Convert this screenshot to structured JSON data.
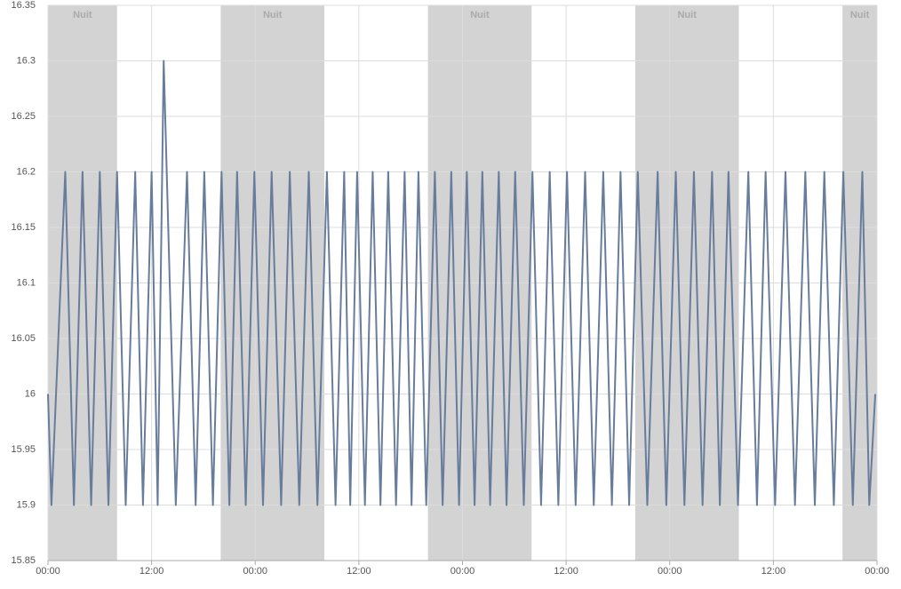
{
  "chart_data": {
    "type": "line",
    "color": "#687d9b",
    "band_color": "#d3d3d3",
    "grid": true,
    "bands": [
      {
        "from": 0,
        "to": 8,
        "label": "Nuit"
      },
      {
        "from": 20,
        "to": 32,
        "label": "Nuit"
      },
      {
        "from": 44,
        "to": 56,
        "label": "Nuit"
      },
      {
        "from": 68,
        "to": 80,
        "label": "Nuit"
      },
      {
        "from": 92,
        "to": 96,
        "label": "Nuit"
      }
    ],
    "xlim": [
      0,
      96
    ],
    "xticks": [
      {
        "value": 0,
        "label": "00:00"
      },
      {
        "value": 12,
        "label": "12:00"
      },
      {
        "value": 24,
        "label": "00:00"
      },
      {
        "value": 36,
        "label": "12:00"
      },
      {
        "value": 48,
        "label": "00:00"
      },
      {
        "value": 60,
        "label": "12:00"
      },
      {
        "value": 72,
        "label": "00:00"
      },
      {
        "value": 84,
        "label": "12:00"
      },
      {
        "value": 96,
        "label": "00:00"
      }
    ],
    "ylim": [
      15.85,
      16.35
    ],
    "yticks": [
      15.85,
      15.9,
      15.95,
      16,
      16.05,
      16.1,
      16.15,
      16.2,
      16.25,
      16.3,
      16.35
    ],
    "x": [
      0,
      0.4,
      2.0,
      3.0,
      4.0,
      5.0,
      6.0,
      7.0,
      8.0,
      9.0,
      10.1,
      11.0,
      12.0,
      12.7,
      13.4,
      14.8,
      16.1,
      17.1,
      18.1,
      19.1,
      20.1,
      21.0,
      21.9,
      22.9,
      23.9,
      24.9,
      25.9,
      27.0,
      28.0,
      29.1,
      30.2,
      31.2,
      32.3,
      33.3,
      34.3,
      35.0,
      35.8,
      36.7,
      37.6,
      38.5,
      39.4,
      40.3,
      41.3,
      42.1,
      42.9,
      43.8,
      44.8,
      45.7,
      46.7,
      47.6,
      48.5,
      49.4,
      50.3,
      51.2,
      52.2,
      53.1,
      54.1,
      55.1,
      56.1,
      57.1,
      58.1,
      59.1,
      60.1,
      61.1,
      62.2,
      63.2,
      64.3,
      65.3,
      66.3,
      67.3,
      68.3,
      69.4,
      70.6,
      71.6,
      72.7,
      73.7,
      74.8,
      75.8,
      76.9,
      77.8,
      78.8,
      79.9,
      81.1,
      82.1,
      83.1,
      84.2,
      85.4,
      86.5,
      87.7,
      88.8,
      89.9,
      91.0,
      92.1,
      93.2,
      94.3,
      95.1,
      95.8
    ],
    "values": [
      16,
      15.9,
      16.2,
      15.9,
      16.2,
      15.9,
      16.2,
      15.9,
      16.2,
      15.9,
      16.2,
      15.9,
      16.2,
      15.9,
      16.3,
      15.9,
      16.2,
      15.9,
      16.2,
      15.9,
      16.2,
      15.9,
      16.2,
      15.9,
      16.2,
      15.9,
      16.2,
      15.9,
      16.2,
      15.9,
      16.2,
      15.9,
      16.2,
      15.9,
      16.2,
      15.9,
      16.2,
      15.9,
      16.2,
      15.9,
      16.2,
      15.9,
      16.2,
      15.9,
      16.2,
      15.9,
      16.2,
      15.9,
      16.2,
      15.9,
      16.2,
      15.9,
      16.2,
      15.9,
      16.2,
      15.9,
      16.2,
      15.9,
      16.2,
      15.9,
      16.2,
      15.9,
      16.2,
      15.9,
      16.2,
      15.9,
      16.2,
      15.9,
      16.2,
      15.9,
      16.2,
      15.9,
      16.2,
      15.9,
      16.2,
      15.9,
      16.2,
      15.9,
      16.2,
      15.9,
      16.2,
      15.9,
      16.2,
      15.9,
      16.2,
      15.9,
      16.2,
      15.9,
      16.2,
      15.9,
      16.2,
      15.9,
      16.2,
      15.9,
      16.2,
      15.9,
      16
    ]
  }
}
